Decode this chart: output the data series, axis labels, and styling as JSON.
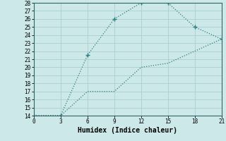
{
  "line1_x": [
    0,
    3,
    6,
    9,
    12,
    15,
    18,
    21
  ],
  "line1_y": [
    14,
    14,
    21.5,
    26,
    28,
    28,
    25,
    23.5
  ],
  "line2_x": [
    0,
    3,
    6,
    9,
    12,
    15,
    18,
    21
  ],
  "line2_y": [
    14,
    14,
    17,
    17,
    20,
    20.5,
    22,
    23.5
  ],
  "line_color": "#2d7d7d",
  "bg_color": "#cce8e8",
  "grid_color": "#aad0d0",
  "xlabel": "Humidex (Indice chaleur)",
  "xlim": [
    0,
    21
  ],
  "ylim": [
    14,
    28
  ],
  "xticks": [
    0,
    3,
    6,
    9,
    12,
    15,
    18,
    21
  ],
  "yticks": [
    14,
    15,
    16,
    17,
    18,
    19,
    20,
    21,
    22,
    23,
    24,
    25,
    26,
    27,
    28
  ],
  "tick_fontsize": 5.5,
  "xlabel_fontsize": 7,
  "marker": "+",
  "markersize": 4,
  "linewidth": 0.9
}
